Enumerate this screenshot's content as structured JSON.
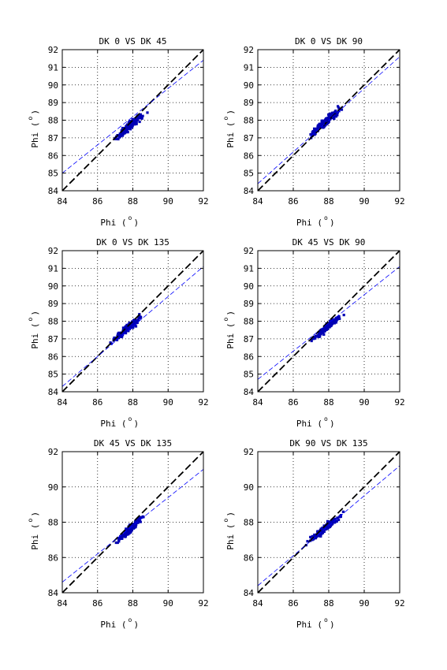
{
  "colors": {
    "scatter": "#0000b4",
    "fit_line": "#0000ff",
    "unity_line": "#000000",
    "grid": "#000000"
  },
  "chart_data": [
    {
      "type": "scatter",
      "title": "DK  0 VS DK 45",
      "xlabel": "Phi (",
      "ylabel": "Phi (",
      "unit": "o",
      "xlim": [
        84,
        92
      ],
      "ylim": [
        84,
        92
      ],
      "xticks": [
        "84",
        "86",
        "88",
        "90",
        "92"
      ],
      "yticks": [
        "84",
        "85",
        "86",
        "87",
        "88",
        "89",
        "90",
        "91",
        "92"
      ],
      "grid": true,
      "cloud": {
        "x_range": [
          86.6,
          89.0
        ],
        "y_range": [
          86.4,
          88.9
        ]
      },
      "fit_line": {
        "slope": 0.8,
        "intercept": 17.8
      },
      "unity_line": {
        "slope": 1,
        "intercept": 0
      }
    },
    {
      "type": "scatter",
      "title": "DK  0 VS DK 90",
      "xlabel": "Phi (",
      "ylabel": "Phi (",
      "unit": "o",
      "xlim": [
        84,
        92
      ],
      "ylim": [
        84,
        92
      ],
      "xticks": [
        "84",
        "86",
        "88",
        "90",
        "92"
      ],
      "yticks": [
        "84",
        "85",
        "86",
        "87",
        "88",
        "89",
        "90",
        "91",
        "92"
      ],
      "grid": true,
      "cloud": {
        "x_range": [
          86.6,
          89.0
        ],
        "y_range": [
          86.6,
          89.2
        ]
      },
      "fit_line": {
        "slope": 0.9,
        "intercept": 8.8
      },
      "unity_line": {
        "slope": 1,
        "intercept": 0
      }
    },
    {
      "type": "scatter",
      "title": "DK  0 VS DK 135",
      "xlabel": "Phi (",
      "ylabel": "Phi (",
      "unit": "o",
      "xlim": [
        84,
        92
      ],
      "ylim": [
        84,
        92
      ],
      "xticks": [
        "84",
        "86",
        "88",
        "90",
        "92"
      ],
      "yticks": [
        "84",
        "85",
        "86",
        "87",
        "88",
        "89",
        "90",
        "91",
        "92"
      ],
      "grid": true,
      "cloud": {
        "x_range": [
          86.6,
          88.9
        ],
        "y_range": [
          86.5,
          88.8
        ]
      },
      "fit_line": {
        "slope": 0.85,
        "intercept": 12.9
      },
      "unity_line": {
        "slope": 1,
        "intercept": 0
      }
    },
    {
      "type": "scatter",
      "title": "DK 45 VS DK 90",
      "xlabel": "Phi (",
      "ylabel": "Phi (",
      "unit": "o",
      "xlim": [
        84,
        92
      ],
      "ylim": [
        84,
        92
      ],
      "xticks": [
        "84",
        "86",
        "88",
        "90",
        "92"
      ],
      "yticks": [
        "84",
        "85",
        "86",
        "87",
        "88",
        "89",
        "90",
        "91",
        "92"
      ],
      "grid": true,
      "cloud": {
        "x_range": [
          86.9,
          88.9
        ],
        "y_range": [
          86.6,
          88.7
        ]
      },
      "fit_line": {
        "slope": 0.8,
        "intercept": 17.5
      },
      "unity_line": {
        "slope": 1,
        "intercept": 0
      }
    },
    {
      "type": "scatter",
      "title": "DK 45 VS DK 135",
      "xlabel": "Phi (",
      "ylabel": "Phi (",
      "unit": "o",
      "xlim": [
        84,
        92
      ],
      "ylim": [
        84,
        92
      ],
      "xticks": [
        "84",
        "86",
        "88",
        "90",
        "92"
      ],
      "yticks": [
        "84",
        "86",
        "88",
        "90",
        "92"
      ],
      "grid": true,
      "cloud": {
        "x_range": [
          86.9,
          88.9
        ],
        "y_range": [
          86.5,
          88.8
        ]
      },
      "fit_line": {
        "slope": 0.8,
        "intercept": 17.4
      },
      "unity_line": {
        "slope": 1,
        "intercept": 0
      }
    },
    {
      "type": "scatter",
      "title": "DK 90 VS DK 135",
      "xlabel": "Phi (",
      "ylabel": "Phi (",
      "unit": "o",
      "xlim": [
        84,
        92
      ],
      "ylim": [
        84,
        92
      ],
      "xticks": [
        "84",
        "86",
        "88",
        "90",
        "92"
      ],
      "yticks": [
        "84",
        "86",
        "88",
        "90",
        "92"
      ],
      "grid": true,
      "cloud": {
        "x_range": [
          86.6,
          89.0
        ],
        "y_range": [
          86.5,
          88.8
        ]
      },
      "fit_line": {
        "slope": 0.85,
        "intercept": 13.0
      },
      "unity_line": {
        "slope": 1,
        "intercept": 0
      }
    }
  ]
}
